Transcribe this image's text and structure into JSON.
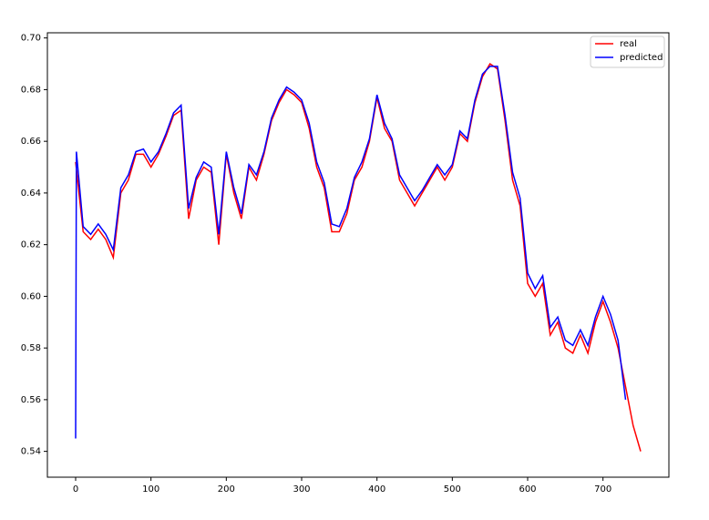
{
  "chart_data": {
    "type": "line",
    "xlim": [
      -37.5,
      787.5
    ],
    "ylim": [
      0.53,
      0.702
    ],
    "xticks": [
      0,
      100,
      200,
      300,
      400,
      500,
      600,
      700
    ],
    "yticks": [
      {
        "value": 0.54,
        "label": "0.54"
      },
      {
        "value": 0.56,
        "label": "0.56"
      },
      {
        "value": 0.58,
        "label": "0.58"
      },
      {
        "value": 0.6,
        "label": "0.60"
      },
      {
        "value": 0.62,
        "label": "0.62"
      },
      {
        "value": 0.64,
        "label": "0.64"
      },
      {
        "value": 0.66,
        "label": "0.66"
      },
      {
        "value": 0.68,
        "label": "0.68"
      },
      {
        "value": 0.7,
        "label": "0.70"
      }
    ],
    "legend": "upper right",
    "series": [
      {
        "name": "real",
        "color": "#ff0000",
        "x": [
          0,
          10,
          20,
          30,
          40,
          50,
          60,
          70,
          80,
          90,
          100,
          110,
          120,
          130,
          140,
          150,
          160,
          170,
          180,
          190,
          200,
          210,
          220,
          230,
          240,
          250,
          260,
          270,
          280,
          290,
          300,
          310,
          320,
          330,
          340,
          350,
          360,
          370,
          380,
          390,
          400,
          410,
          420,
          430,
          440,
          450,
          460,
          470,
          480,
          490,
          500,
          510,
          520,
          530,
          540,
          550,
          560,
          570,
          580,
          590,
          600,
          610,
          620,
          630,
          640,
          650,
          660,
          670,
          680,
          690,
          700,
          710,
          720,
          730,
          740,
          750
        ],
        "values": [
          0.652,
          0.625,
          0.622,
          0.626,
          0.622,
          0.615,
          0.64,
          0.645,
          0.655,
          0.655,
          0.65,
          0.655,
          0.662,
          0.67,
          0.672,
          0.63,
          0.645,
          0.65,
          0.648,
          0.62,
          0.655,
          0.64,
          0.63,
          0.65,
          0.645,
          0.655,
          0.668,
          0.675,
          0.68,
          0.678,
          0.675,
          0.665,
          0.65,
          0.642,
          0.625,
          0.625,
          0.632,
          0.645,
          0.65,
          0.66,
          0.677,
          0.665,
          0.66,
          0.645,
          0.64,
          0.635,
          0.64,
          0.645,
          0.65,
          0.645,
          0.65,
          0.663,
          0.66,
          0.675,
          0.685,
          0.69,
          0.688,
          0.668,
          0.645,
          0.635,
          0.605,
          0.6,
          0.605,
          0.585,
          0.59,
          0.58,
          0.578,
          0.585,
          0.578,
          0.59,
          0.598,
          0.59,
          0.58,
          0.565,
          0.55,
          0.54
        ]
      },
      {
        "name": "predicted",
        "color": "#0000ff",
        "x": [
          0,
          1,
          10,
          20,
          30,
          40,
          50,
          60,
          70,
          80,
          90,
          100,
          110,
          120,
          130,
          140,
          150,
          160,
          170,
          180,
          190,
          200,
          210,
          220,
          230,
          240,
          250,
          260,
          270,
          280,
          290,
          300,
          310,
          320,
          330,
          340,
          350,
          360,
          370,
          380,
          390,
          400,
          410,
          420,
          430,
          440,
          450,
          460,
          470,
          480,
          490,
          500,
          510,
          520,
          530,
          540,
          550,
          560,
          570,
          580,
          590,
          600,
          610,
          620,
          630,
          640,
          650,
          660,
          670,
          680,
          690,
          700,
          710,
          720,
          730
        ],
        "values": [
          0.545,
          0.656,
          0.627,
          0.624,
          0.628,
          0.624,
          0.618,
          0.642,
          0.647,
          0.656,
          0.657,
          0.652,
          0.656,
          0.663,
          0.671,
          0.674,
          0.634,
          0.646,
          0.652,
          0.65,
          0.624,
          0.656,
          0.642,
          0.632,
          0.651,
          0.647,
          0.656,
          0.669,
          0.676,
          0.681,
          0.679,
          0.676,
          0.667,
          0.652,
          0.644,
          0.628,
          0.627,
          0.634,
          0.646,
          0.652,
          0.661,
          0.678,
          0.667,
          0.661,
          0.647,
          0.642,
          0.637,
          0.641,
          0.646,
          0.651,
          0.647,
          0.651,
          0.664,
          0.661,
          0.676,
          0.686,
          0.689,
          0.689,
          0.67,
          0.648,
          0.638,
          0.609,
          0.603,
          0.608,
          0.588,
          0.592,
          0.583,
          0.581,
          0.587,
          0.581,
          0.592,
          0.6,
          0.593,
          0.583,
          0.56
        ]
      }
    ]
  }
}
